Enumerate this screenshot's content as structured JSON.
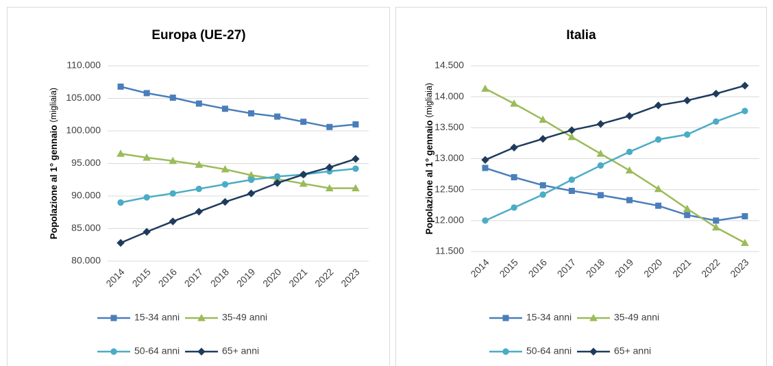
{
  "chart_data": [
    {
      "type": "line",
      "title": "Europa (UE-27)",
      "ylabel": "Popolazione al 1° gennaio",
      "ylabel_unit": "(migliaia)",
      "categories": [
        "2014",
        "2015",
        "2016",
        "2017",
        "2018",
        "2019",
        "2020",
        "2021",
        "2022",
        "2023"
      ],
      "ylim": [
        80000,
        110000
      ],
      "yticks": [
        {
          "value": 80000,
          "label": "80.000"
        },
        {
          "value": 85000,
          "label": "85.000"
        },
        {
          "value": 90000,
          "label": "90.000"
        },
        {
          "value": 95000,
          "label": "95.000"
        },
        {
          "value": 100000,
          "label": "100.000"
        },
        {
          "value": 105000,
          "label": "105.000"
        },
        {
          "value": 110000,
          "label": "110.000"
        }
      ],
      "grid": true,
      "legend": "bottom",
      "series": [
        {
          "name": "15-34 anni",
          "color": "#4a7ebb",
          "marker": "square",
          "values": [
            106800,
            105800,
            105100,
            104200,
            103400,
            102700,
            102200,
            101400,
            100600,
            101000
          ]
        },
        {
          "name": "35-49 anni",
          "color": "#9bbb59",
          "marker": "triangle",
          "values": [
            96500,
            95900,
            95400,
            94800,
            94100,
            93200,
            92600,
            91900,
            91200,
            91200
          ]
        },
        {
          "name": "50-64 anni",
          "color": "#4bacc6",
          "marker": "circle",
          "values": [
            89000,
            89800,
            90400,
            91100,
            91800,
            92500,
            93000,
            93300,
            93800,
            94200
          ]
        },
        {
          "name": "65+ anni",
          "color": "#1f3b5c",
          "marker": "diamond",
          "values": [
            82800,
            84500,
            86100,
            87600,
            89100,
            90400,
            92000,
            93300,
            94400,
            95700
          ]
        }
      ]
    },
    {
      "type": "line",
      "title": "Italia",
      "ylabel": "Popolazione al 1° gennaio",
      "ylabel_unit": "(migliaia)",
      "categories": [
        "2014",
        "2015",
        "2016",
        "2017",
        "2018",
        "2019",
        "2020",
        "2021",
        "2022",
        "2023"
      ],
      "ylim": [
        11500,
        14500
      ],
      "yticks": [
        {
          "value": 11500,
          "label": "11.500"
        },
        {
          "value": 12000,
          "label": "12.000"
        },
        {
          "value": 12500,
          "label": "12.500"
        },
        {
          "value": 13000,
          "label": "13.000"
        },
        {
          "value": 13500,
          "label": "13.500"
        },
        {
          "value": 14000,
          "label": "14.000"
        },
        {
          "value": 14500,
          "label": "14.500"
        }
      ],
      "grid": true,
      "legend": "bottom",
      "series": [
        {
          "name": "15-34 anni",
          "color": "#4a7ebb",
          "marker": "square",
          "values": [
            12850,
            12700,
            12570,
            12480,
            12410,
            12330,
            12240,
            12090,
            12000,
            12070
          ]
        },
        {
          "name": "35-49 anni",
          "color": "#9bbb59",
          "marker": "triangle",
          "values": [
            14130,
            13890,
            13630,
            13350,
            13080,
            12810,
            12510,
            12190,
            11890,
            11640
          ]
        },
        {
          "name": "50-64 anni",
          "color": "#4bacc6",
          "marker": "circle",
          "values": [
            12000,
            12210,
            12420,
            12660,
            12890,
            13110,
            13310,
            13390,
            13600,
            13770
          ]
        },
        {
          "name": "65+ anni",
          "color": "#1f3b5c",
          "marker": "diamond",
          "values": [
            12980,
            13180,
            13320,
            13460,
            13560,
            13690,
            13860,
            13940,
            14050,
            14180
          ]
        }
      ]
    }
  ]
}
